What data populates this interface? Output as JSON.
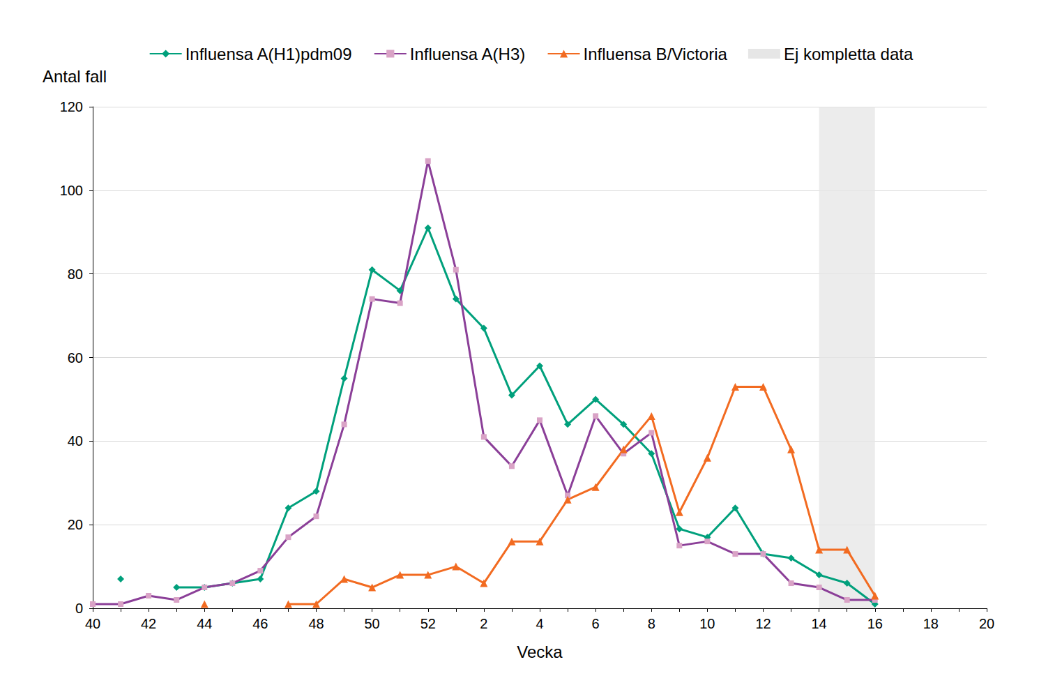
{
  "chart_data": {
    "type": "line",
    "x_label": "Vecka",
    "y_label": "Antal fall",
    "categories": [
      40,
      null,
      42,
      null,
      44,
      null,
      46,
      null,
      48,
      null,
      50,
      null,
      52,
      null,
      2,
      null,
      4,
      null,
      6,
      null,
      8,
      null,
      10,
      null,
      12,
      null,
      14,
      null,
      16,
      null,
      18,
      null,
      20
    ],
    "series": [
      {
        "name": "Influensa A(H1)pdm09",
        "color": "#00a07c",
        "marker": "diamond",
        "values": [
          null,
          7,
          null,
          5,
          5,
          6,
          7,
          24,
          28,
          55,
          81,
          76,
          91,
          74,
          67,
          51,
          58,
          44,
          50,
          44,
          37,
          19,
          17,
          24,
          13,
          12,
          8,
          6,
          1,
          null,
          null,
          null,
          null
        ]
      },
      {
        "name": "Influensa A(H3)",
        "color": "#8b3f98",
        "marker": "square",
        "values": [
          1,
          1,
          3,
          2,
          5,
          6,
          9,
          17,
          22,
          44,
          74,
          73,
          107,
          81,
          41,
          34,
          45,
          27,
          46,
          37,
          42,
          15,
          16,
          13,
          13,
          6,
          5,
          2,
          2,
          null,
          null,
          null,
          null
        ]
      },
      {
        "name": "Influensa B/Victoria",
        "color": "#f26b21",
        "marker": "triangle",
        "values": [
          null,
          null,
          null,
          null,
          1,
          null,
          null,
          1,
          1,
          7,
          5,
          8,
          8,
          10,
          6,
          16,
          16,
          26,
          29,
          38,
          46,
          23,
          36,
          53,
          53,
          38,
          14,
          14,
          3,
          null,
          null,
          null,
          null
        ]
      }
    ],
    "shaded_region": {
      "name": "Ej kompletta data",
      "color": "#e6e6e6",
      "x": [
        14,
        16
      ]
    },
    "ylim": [
      0,
      120
    ],
    "yticks": [
      0,
      20,
      40,
      60,
      80,
      100,
      120
    ],
    "grid": true,
    "legend": "top"
  }
}
